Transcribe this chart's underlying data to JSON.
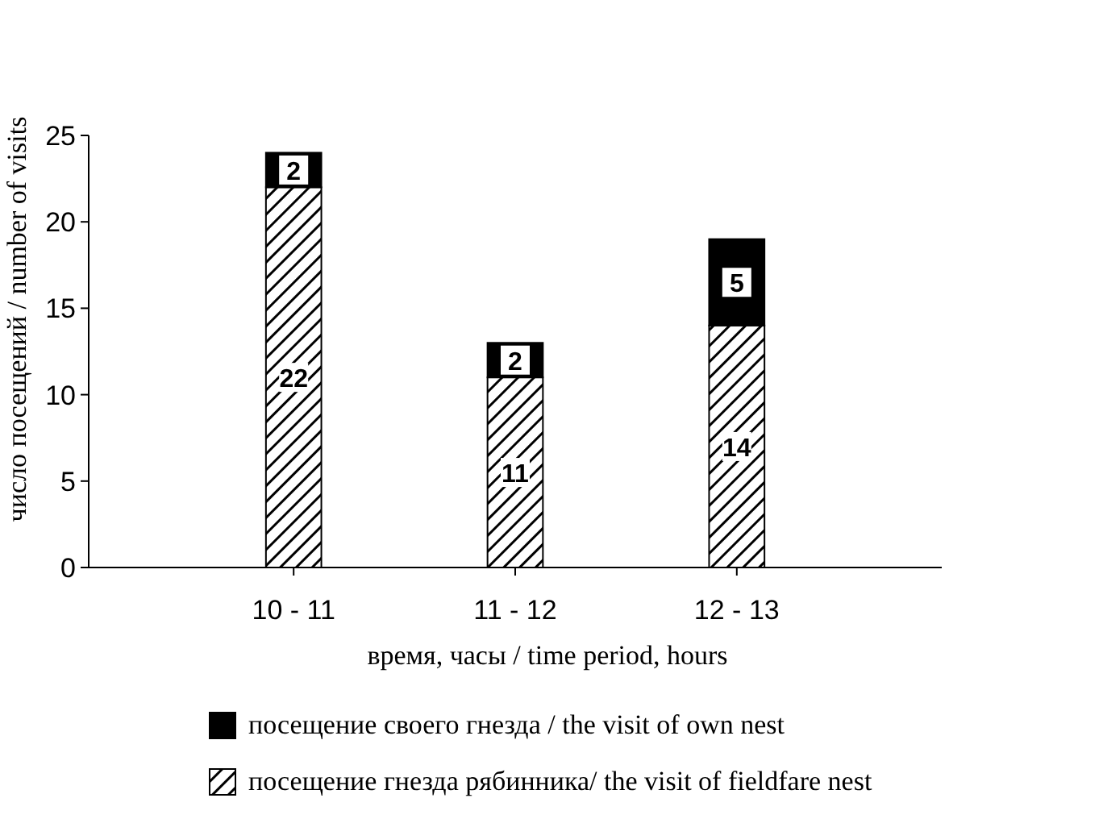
{
  "chart_data": {
    "type": "bar",
    "stacked": true,
    "xlabel": "время, часы / time period, hours",
    "ylabel": "число посещений / number of visits",
    "categories": [
      "10 - 11",
      "11 - 12",
      "12 - 13"
    ],
    "series": [
      {
        "name": "посещение гнезда рябинника/ the visit of fieldfare nest",
        "color": "#000000",
        "values": [
          22,
          11,
          14
        ]
      },
      {
        "name": "посещение своего гнезда / the visit of own nest",
        "color": "#000000",
        "values": [
          2,
          2,
          5
        ]
      }
    ],
    "ylim": [
      0,
      25
    ],
    "yticks": [
      0,
      5,
      10,
      15,
      20,
      25
    ],
    "data_labels": true,
    "legend": "bottom",
    "grid": false
  }
}
